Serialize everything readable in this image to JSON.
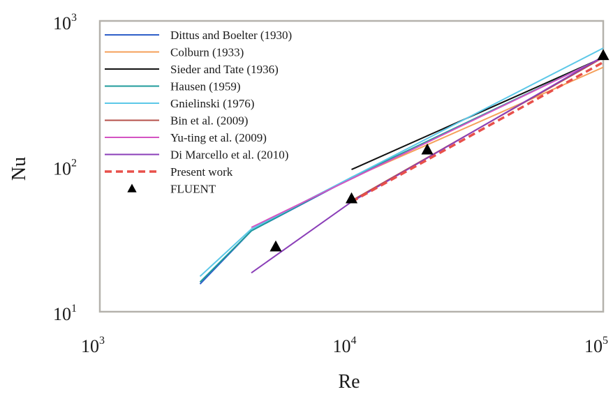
{
  "chart_data": {
    "type": "line",
    "x_scale": "log",
    "y_scale": "log",
    "xlim": [
      1000,
      100000
    ],
    "ylim": [
      10,
      1000
    ],
    "xlabel": "Re",
    "ylabel": "Nu",
    "grid": false,
    "legend_position": "top-left",
    "x_ticks": [
      {
        "base": "10",
        "exp": "3",
        "value": 1000
      },
      {
        "base": "10",
        "exp": "4",
        "value": 10000
      },
      {
        "base": "10",
        "exp": "5",
        "value": 100000
      }
    ],
    "y_ticks": [
      {
        "base": "10",
        "exp": "1",
        "value": 10
      },
      {
        "base": "10",
        "exp": "2",
        "value": 100
      },
      {
        "base": "10",
        "exp": "3",
        "value": 1000
      }
    ],
    "series": [
      {
        "name": "Dittus and Boelter (1930)",
        "color": "#2f5fc9",
        "style": "solid",
        "x": [
          2500,
          4000,
          10000,
          100000
        ],
        "y": [
          15.5,
          36,
          83,
          560
        ]
      },
      {
        "name": "Colburn (1933)",
        "color": "#f5a05a",
        "style": "solid",
        "x": [
          10000,
          100000
        ],
        "y": [
          83,
          480
        ]
      },
      {
        "name": "Sieder and Tate (1936)",
        "color": "#111111",
        "style": "solid",
        "x": [
          10000,
          100000
        ],
        "y": [
          95,
          560
        ]
      },
      {
        "name": "Hausen (1959)",
        "color": "#1f9b9b",
        "style": "solid",
        "x": [
          2500,
          4000,
          10000,
          100000
        ],
        "y": [
          16,
          36,
          84,
          560
        ]
      },
      {
        "name": "Gnielinski (1976)",
        "color": "#5cc8e8",
        "style": "solid",
        "x": [
          2500,
          4000,
          10000,
          100000
        ],
        "y": [
          17.5,
          37,
          84,
          650
        ]
      },
      {
        "name": "Bin et al. (2009)",
        "color": "#b5504a",
        "style": "solid",
        "x": [
          10000,
          100000
        ],
        "y": [
          58,
          560
        ]
      },
      {
        "name": "Yu-ting et al. (2009)",
        "color": "#d453c2",
        "style": "solid",
        "x": [
          4000,
          10000,
          100000
        ],
        "y": [
          38,
          82,
          560
        ]
      },
      {
        "name": "Di Marcello et al. (2010)",
        "color": "#8b3fb8",
        "style": "solid",
        "x": [
          4000,
          10000,
          100000
        ],
        "y": [
          18.5,
          57,
          570
        ]
      },
      {
        "name": "Present work",
        "color": "#e8504a",
        "style": "dashed",
        "x": [
          10000,
          100000
        ],
        "y": [
          57,
          520
        ]
      },
      {
        "name": "FLUENT",
        "color": "#000000",
        "style": "marker",
        "x": [
          5000,
          10000,
          20000,
          100000
        ],
        "y": [
          28,
          60,
          130,
          580
        ]
      }
    ]
  }
}
